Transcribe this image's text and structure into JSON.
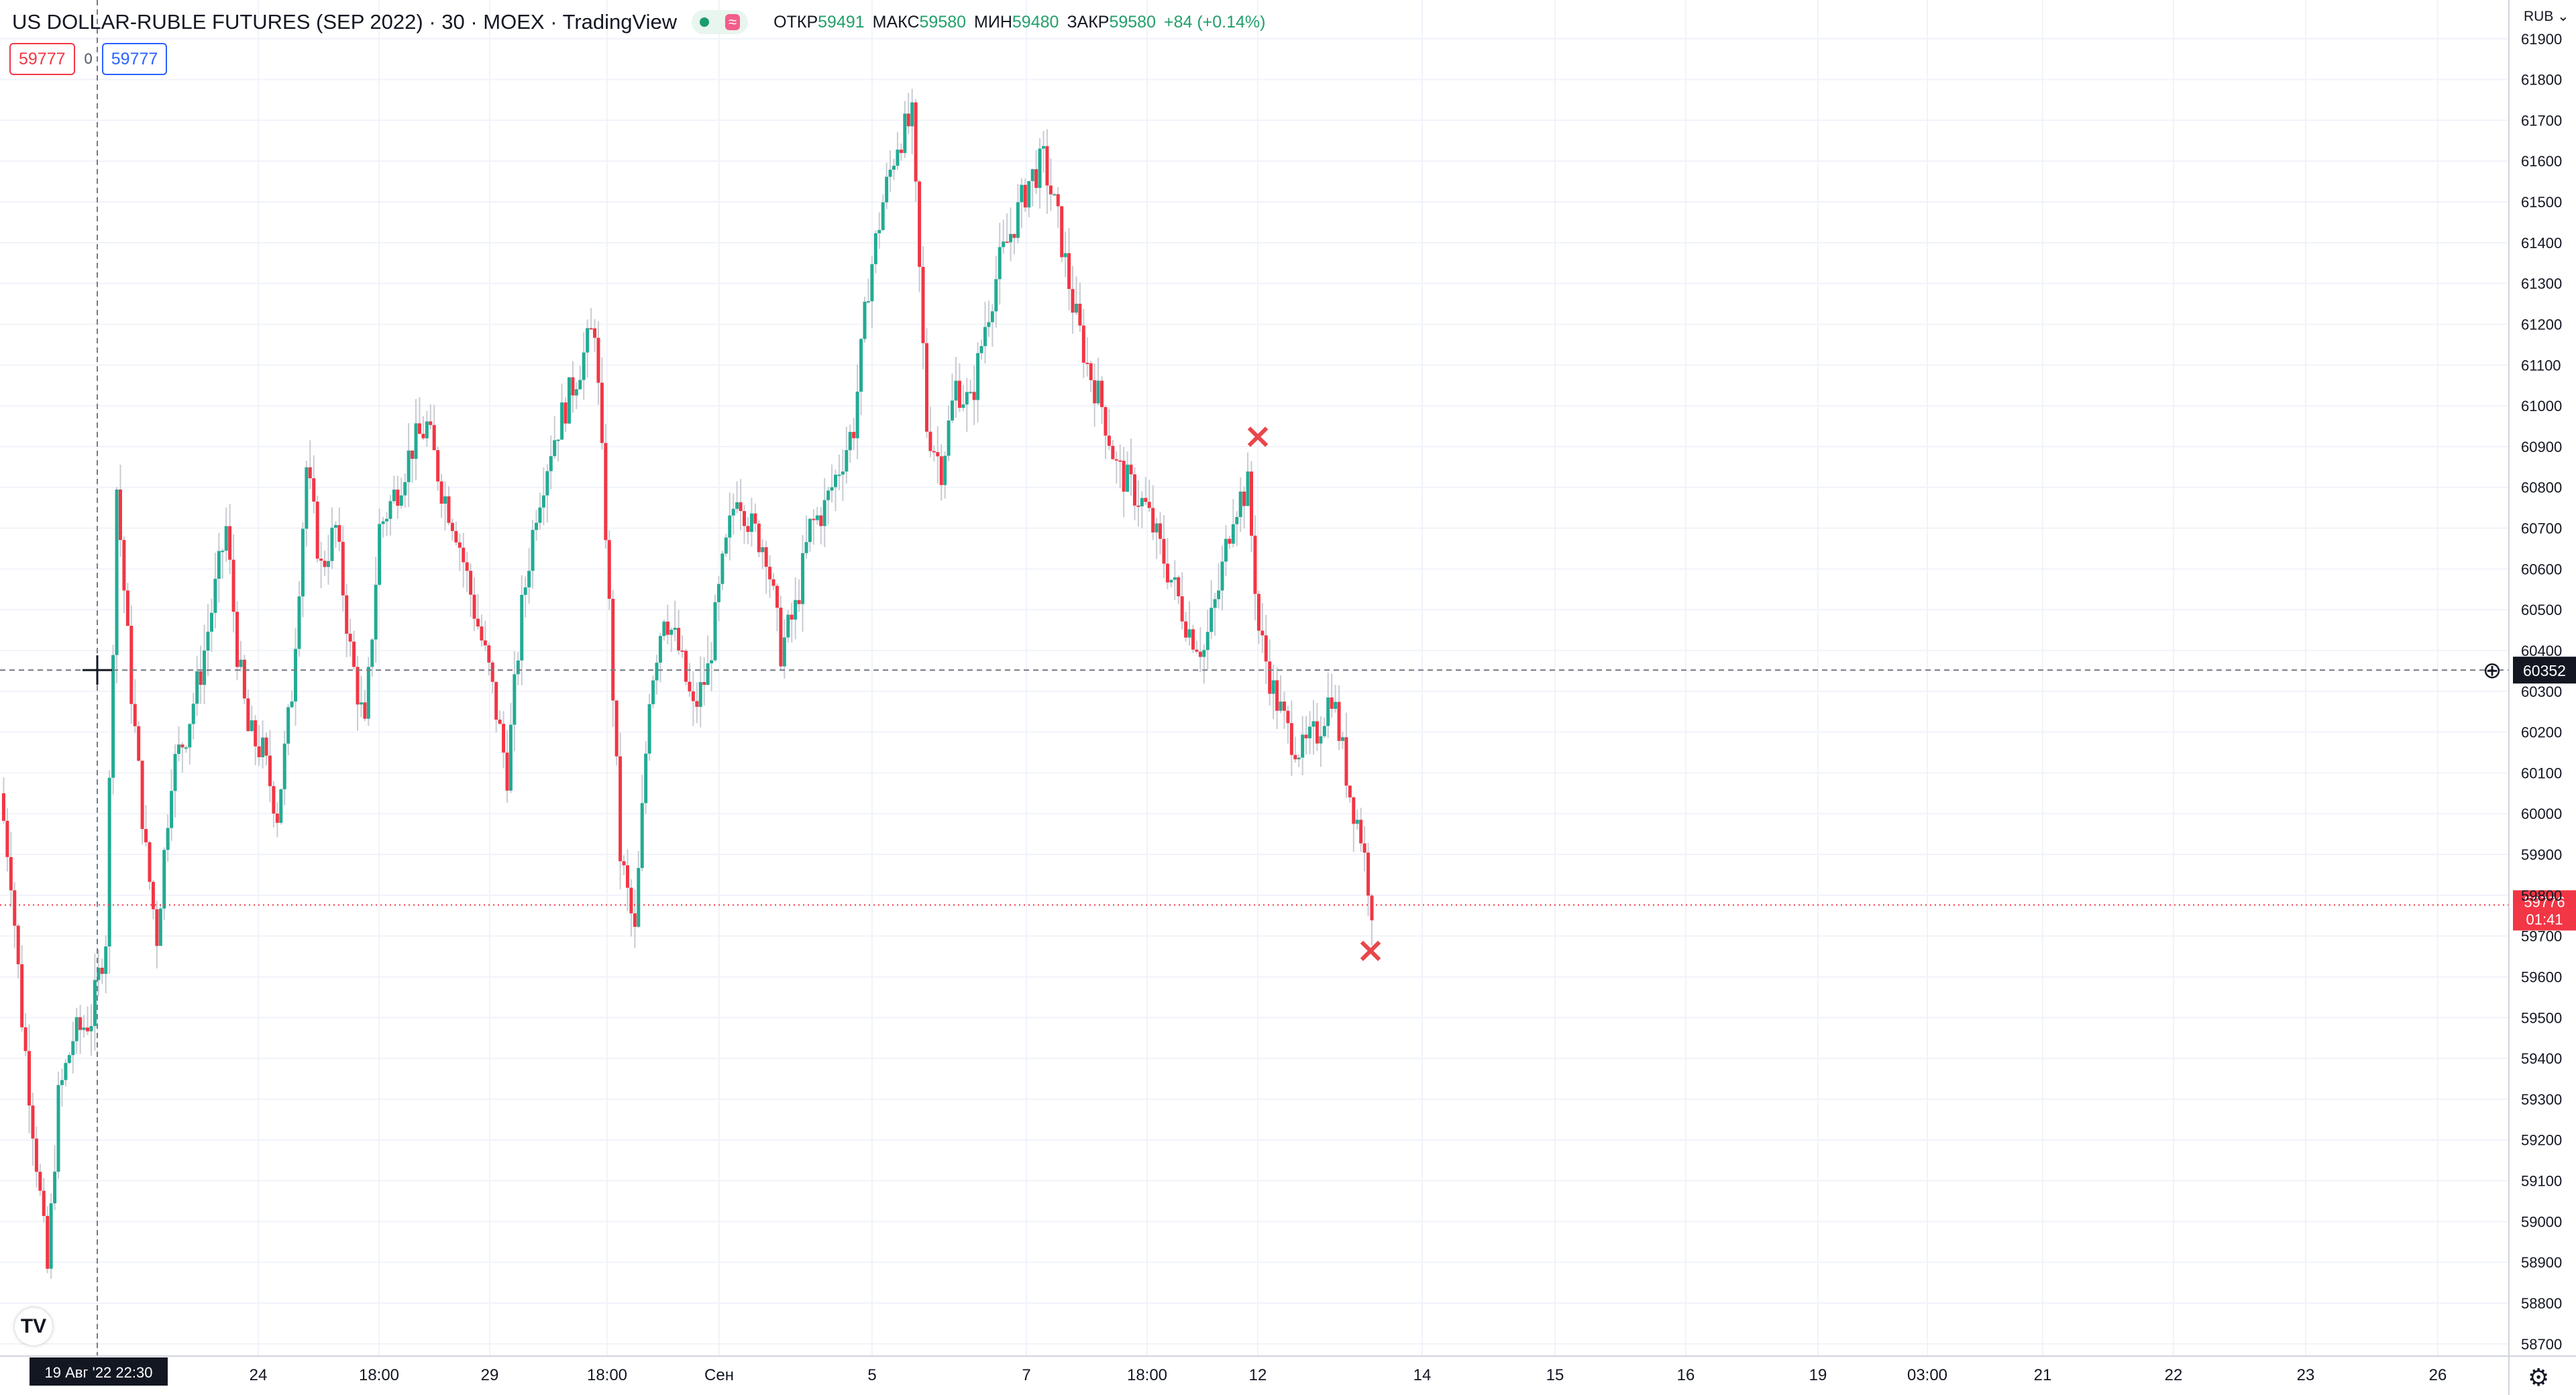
{
  "legend": {
    "title": "US DOLLAR-RUBLE FUTURES (SEP 2022) · 30 · MOEX · TradingView",
    "status_icon": "market-open-dot",
    "wave_icon": "≈",
    "open_label": "ОТКР",
    "open_value": "59491",
    "high_label": "МАКС",
    "high_value": "59580",
    "low_label": "МИН",
    "low_value": "59480",
    "close_label": "ЗАКР",
    "close_value": "59580",
    "change": "+84 (+0.14%)"
  },
  "order": {
    "sell_price": "59777",
    "spread": "0",
    "buy_price": "59777"
  },
  "currency_label": "RUB ⌄",
  "crosshair": {
    "price_label": "60352",
    "date_label": "19 Авг '22   22:30",
    "plus_icon": "⊕"
  },
  "last_price": {
    "price": "59776",
    "countdown": "01:41"
  },
  "tradingview_logo": "TV",
  "settings_icon": "⚙",
  "colors": {
    "up": "#22ab94",
    "down": "#f23645",
    "grid": "#f0f3fa",
    "marker": "#e8474c"
  },
  "chart_data": {
    "type": "candlestick",
    "symbol": "US DOLLAR-RUBLE FUTURES (SEP 2022)",
    "interval": "30",
    "exchange": "MOEX",
    "ylim": [
      58670,
      61995
    ],
    "y_ticks": [
      58700,
      58800,
      58900,
      59000,
      59100,
      59200,
      59300,
      59400,
      59500,
      59600,
      59700,
      59800,
      59900,
      60000,
      60100,
      60200,
      60300,
      60400,
      60500,
      60600,
      60700,
      60800,
      60900,
      61000,
      61100,
      61200,
      61300,
      61400,
      61500,
      61600,
      61700,
      61800,
      61900
    ],
    "x_ticks": [
      "24",
      "18:00",
      "29",
      "18:00",
      "Сен",
      "5",
      "7",
      "18:00",
      "12",
      "14",
      "15",
      "16",
      "19",
      "03:00",
      "21",
      "22",
      "23",
      "26"
    ],
    "price_path": [
      [
        19.0,
        60050
      ],
      [
        19.3,
        59850
      ],
      [
        19.6,
        59500
      ],
      [
        20.0,
        59150
      ],
      [
        20.3,
        58880
      ],
      [
        20.6,
        59300
      ],
      [
        21.0,
        59450
      ],
      [
        21.5,
        59500
      ],
      [
        21.9,
        59700
      ],
      [
        22.2,
        60800
      ],
      [
        22.6,
        60300
      ],
      [
        23.0,
        59900
      ],
      [
        23.3,
        59700
      ],
      [
        23.7,
        60100
      ],
      [
        24.1,
        60200
      ],
      [
        24.5,
        60350
      ],
      [
        24.9,
        60550
      ],
      [
        25.2,
        60700
      ],
      [
        25.5,
        60400
      ],
      [
        25.8,
        60200
      ],
      [
        26.2,
        60150
      ],
      [
        26.6,
        60000
      ],
      [
        27.0,
        60300
      ],
      [
        27.4,
        60850
      ],
      [
        27.8,
        60600
      ],
      [
        28.2,
        60700
      ],
      [
        28.6,
        60400
      ],
      [
        29.0,
        60200
      ],
      [
        29.4,
        60700
      ],
      [
        29.9,
        60800
      ],
      [
        30.3,
        60900
      ],
      [
        30.7,
        60950
      ],
      [
        31.1,
        60800
      ],
      [
        31.5,
        60700
      ],
      [
        32.0,
        60500
      ],
      [
        32.4,
        60350
      ],
      [
        32.9,
        60100
      ],
      [
        33.3,
        60500
      ],
      [
        33.7,
        60750
      ],
      [
        34.1,
        60900
      ],
      [
        34.5,
        61000
      ],
      [
        34.9,
        61100
      ],
      [
        35.3,
        61200
      ],
      [
        35.6,
        60700
      ],
      [
        36.0,
        59900
      ],
      [
        36.4,
        59700
      ],
      [
        36.8,
        60300
      ],
      [
        37.2,
        60500
      ],
      [
        37.6,
        60400
      ],
      [
        38.0,
        60250
      ],
      [
        38.4,
        60350
      ],
      [
        38.8,
        60600
      ],
      [
        39.2,
        60800
      ],
      [
        39.6,
        60700
      ],
      [
        40.0,
        60650
      ],
      [
        40.4,
        60400
      ],
      [
        40.8,
        60500
      ],
      [
        41.2,
        60700
      ],
      [
        41.6,
        60750
      ],
      [
        42.0,
        60850
      ],
      [
        42.4,
        60950
      ],
      [
        42.8,
        61300
      ],
      [
        43.2,
        61500
      ],
      [
        43.6,
        61650
      ],
      [
        44.0,
        61700
      ],
      [
        44.4,
        60950
      ],
      [
        44.8,
        60850
      ],
      [
        45.2,
        61050
      ],
      [
        45.6,
        61000
      ],
      [
        46.0,
        61200
      ],
      [
        46.4,
        61350
      ],
      [
        46.8,
        61450
      ],
      [
        47.2,
        61550
      ],
      [
        47.6,
        61600
      ],
      [
        48.0,
        61450
      ],
      [
        48.4,
        61250
      ],
      [
        48.8,
        61100
      ],
      [
        49.2,
        61000
      ],
      [
        49.6,
        60850
      ],
      [
        50.0,
        60800
      ],
      [
        50.4,
        60750
      ],
      [
        50.8,
        60650
      ],
      [
        51.2,
        60550
      ],
      [
        51.6,
        60450
      ],
      [
        52.0,
        60400
      ],
      [
        52.4,
        60550
      ],
      [
        52.8,
        60750
      ],
      [
        53.2,
        60800
      ],
      [
        53.5,
        60450
      ],
      [
        53.9,
        60300
      ],
      [
        54.3,
        60200
      ],
      [
        54.7,
        60150
      ],
      [
        55.1,
        60200
      ],
      [
        55.5,
        60300
      ],
      [
        55.8,
        60150
      ],
      [
        56.0,
        60050
      ],
      [
        56.3,
        59950
      ],
      [
        56.6,
        59776
      ]
    ],
    "markers": [
      {
        "x": "12",
        "price": 60920,
        "symbol": "×"
      },
      {
        "x": "13",
        "price": 59660,
        "symbol": "×"
      }
    ]
  }
}
